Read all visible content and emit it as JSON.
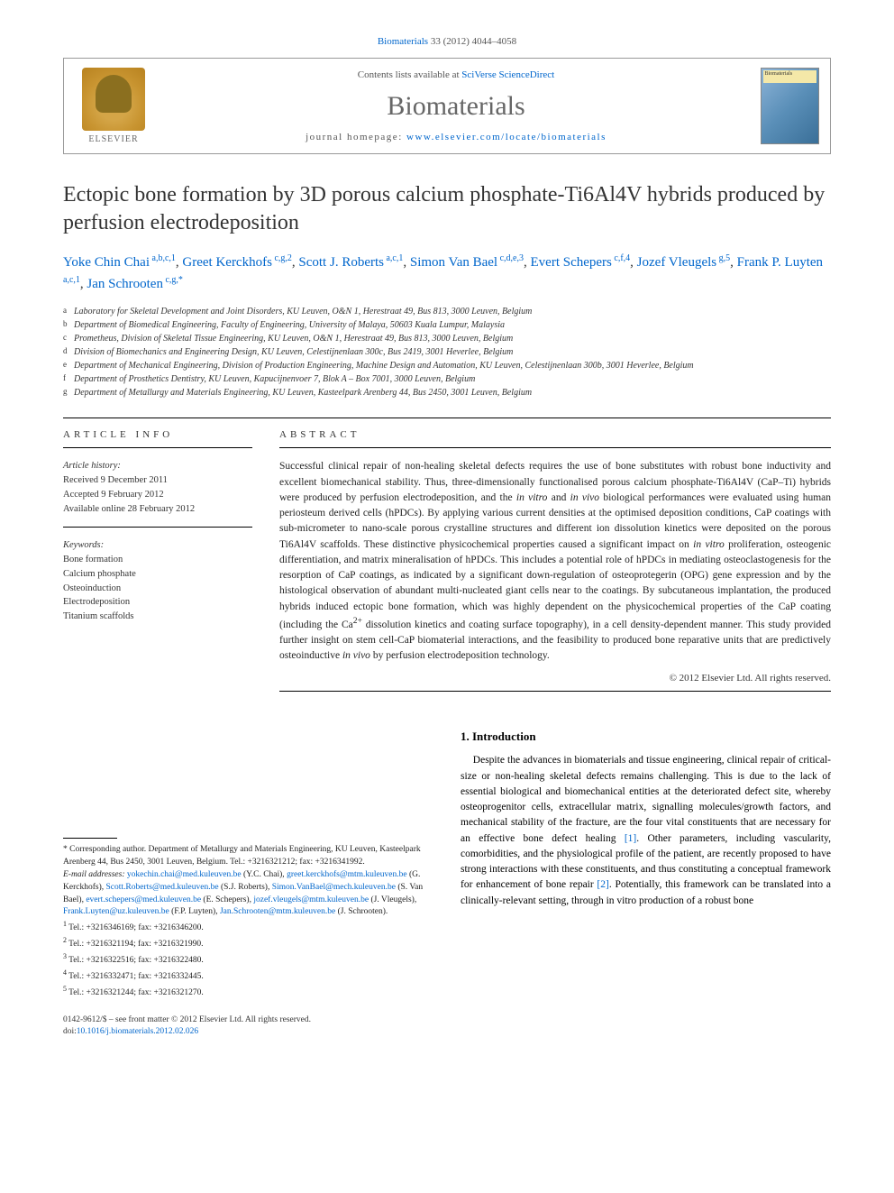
{
  "citation": {
    "journal_link": "Biomaterials",
    "rest": " 33 (2012) 4044–4058"
  },
  "header": {
    "contents_prefix": "Contents lists available at ",
    "contents_link": "SciVerse ScienceDirect",
    "journal_name": "Biomaterials",
    "homepage_prefix": "journal homepage: ",
    "homepage_link": "www.elsevier.com/locate/biomaterials",
    "elsevier_label": "ELSEVIER",
    "cover_label": "Biomaterials"
  },
  "title": "Ectopic bone formation by 3D porous calcium phosphate-Ti6Al4V hybrids produced by perfusion electrodeposition",
  "authors": [
    {
      "name": "Yoke Chin Chai",
      "sup": "a,b,c,1"
    },
    {
      "name": "Greet Kerckhofs",
      "sup": "c,g,2"
    },
    {
      "name": "Scott J. Roberts",
      "sup": "a,c,1"
    },
    {
      "name": "Simon Van Bael",
      "sup": "c,d,e,3"
    },
    {
      "name": "Evert Schepers",
      "sup": "c,f,4"
    },
    {
      "name": "Jozef Vleugels",
      "sup": "g,5"
    },
    {
      "name": "Frank P. Luyten",
      "sup": "a,c,1"
    },
    {
      "name": "Jan Schrooten",
      "sup": "c,g,*"
    }
  ],
  "affiliations": [
    {
      "sup": "a",
      "text": "Laboratory for Skeletal Development and Joint Disorders, KU Leuven, O&N 1, Herestraat 49, Bus 813, 3000 Leuven, Belgium"
    },
    {
      "sup": "b",
      "text": "Department of Biomedical Engineering, Faculty of Engineering, University of Malaya, 50603 Kuala Lumpur, Malaysia"
    },
    {
      "sup": "c",
      "text": "Prometheus, Division of Skeletal Tissue Engineering, KU Leuven, O&N 1, Herestraat 49, Bus 813, 3000 Leuven, Belgium"
    },
    {
      "sup": "d",
      "text": "Division of Biomechanics and Engineering Design, KU Leuven, Celestijnenlaan 300c, Bus 2419, 3001 Heverlee, Belgium"
    },
    {
      "sup": "e",
      "text": "Department of Mechanical Engineering, Division of Production Engineering, Machine Design and Automation, KU Leuven, Celestijnenlaan 300b, 3001 Heverlee, Belgium"
    },
    {
      "sup": "f",
      "text": "Department of Prosthetics Dentistry, KU Leuven, Kapucijnenvoer 7, Blok A – Box 7001, 3000 Leuven, Belgium"
    },
    {
      "sup": "g",
      "text": "Department of Metallurgy and Materials Engineering, KU Leuven, Kasteelpark Arenberg 44, Bus 2450, 3001 Leuven, Belgium"
    }
  ],
  "article_info": {
    "head": "ARTICLE INFO",
    "history_label": "Article history:",
    "received": "Received 9 December 2011",
    "accepted": "Accepted 9 February 2012",
    "online": "Available online 28 February 2012",
    "keywords_label": "Keywords:",
    "keywords": [
      "Bone formation",
      "Calcium phosphate",
      "Osteoinduction",
      "Electrodeposition",
      "Titanium scaffolds"
    ]
  },
  "abstract": {
    "head": "ABSTRACT",
    "text": "Successful clinical repair of non-healing skeletal defects requires the use of bone substitutes with robust bone inductivity and excellent biomechanical stability. Thus, three-dimensionally functionalised porous calcium phosphate-Ti6Al4V (CaP–Ti) hybrids were produced by perfusion electrodeposition, and the in vitro and in vivo biological performances were evaluated using human periosteum derived cells (hPDCs). By applying various current densities at the optimised deposition conditions, CaP coatings with sub-micrometer to nano-scale porous crystalline structures and different ion dissolution kinetics were deposited on the porous Ti6Al4V scaffolds. These distinctive physicochemical properties caused a significant impact on in vitro proliferation, osteogenic differentiation, and matrix mineralisation of hPDCs. This includes a potential role of hPDCs in mediating osteoclastogenesis for the resorption of CaP coatings, as indicated by a significant down-regulation of osteoprotegerin (OPG) gene expression and by the histological observation of abundant multi-nucleated giant cells near to the coatings. By subcutaneous implantation, the produced hybrids induced ectopic bone formation, which was highly dependent on the physicochemical properties of the CaP coating (including the Ca2+ dissolution kinetics and coating surface topography), in a cell density-dependent manner. This study provided further insight on stem cell-CaP biomaterial interactions, and the feasibility to produced bone reparative units that are predictively osteoinductive in vivo by perfusion electrodeposition technology.",
    "copyright": "© 2012 Elsevier Ltd. All rights reserved."
  },
  "footnotes": {
    "corresponding": "* Corresponding author. Department of Metallurgy and Materials Engineering, KU Leuven, Kasteelpark Arenberg 44, Bus 2450, 3001 Leuven, Belgium. Tel.: +3216321212; fax: +3216341992.",
    "email_label": "E-mail addresses: ",
    "emails": [
      {
        "addr": "yokechin.chai@med.kuleuven.be",
        "who": " (Y.C. Chai), "
      },
      {
        "addr": "greet.kerckhofs@mtm.kuleuven.be",
        "who": " (G. Kerckhofs), "
      },
      {
        "addr": "Scott.Roberts@med.kuleuven.be",
        "who": " (S.J. Roberts), "
      },
      {
        "addr": "Simon.VanBael@mech.kuleuven.be",
        "who": " (S. Van Bael), "
      },
      {
        "addr": "evert.schepers@med.kuleuven.be",
        "who": " (E. Schepers), "
      },
      {
        "addr": "jozef.vleugels@mtm.kuleuven.be",
        "who": " (J. Vleugels), "
      },
      {
        "addr": "Frank.Luyten@uz.kuleuven.be",
        "who": " (F.P. Luyten), "
      },
      {
        "addr": "Jan.Schrooten@mtm.kuleuven.be",
        "who": " (J. Schrooten)."
      }
    ],
    "tels": [
      {
        "sup": "1",
        "text": "Tel.: +3216346169; fax: +3216346200."
      },
      {
        "sup": "2",
        "text": "Tel.: +3216321194; fax: +3216321990."
      },
      {
        "sup": "3",
        "text": "Tel.: +3216322516; fax: +3216322480."
      },
      {
        "sup": "4",
        "text": "Tel.: +3216332471; fax: +3216332445."
      },
      {
        "sup": "5",
        "text": "Tel.: +3216321244; fax: +3216321270."
      }
    ]
  },
  "intro": {
    "head": "1. Introduction",
    "text_parts": [
      "Despite the advances in biomaterials and tissue engineering, clinical repair of critical-size or non-healing skeletal defects remains challenging. This is due to the lack of essential biological and biomechanical entities at the deteriorated defect site, whereby osteoprogenitor cells, extracellular matrix, signalling molecules/growth factors, and mechanical stability of the fracture, are the four vital constituents that are necessary for an effective bone defect healing ",
      ". Other parameters, including vascularity, comorbidities, and the physiological profile of the patient, are recently proposed to have strong interactions with these constituents, and thus constituting a conceptual framework for enhancement of bone repair ",
      ". Potentially, this framework can be translated into a clinically-relevant setting, through in vitro production of a robust bone"
    ],
    "refs": [
      "[1]",
      "[2]"
    ]
  },
  "bottom": {
    "line1": "0142-9612/$ – see front matter © 2012 Elsevier Ltd. All rights reserved.",
    "doi_prefix": "doi:",
    "doi": "10.1016/j.biomaterials.2012.02.026"
  },
  "colors": {
    "link": "#0066cc",
    "text": "#222222",
    "muted": "#555555"
  }
}
